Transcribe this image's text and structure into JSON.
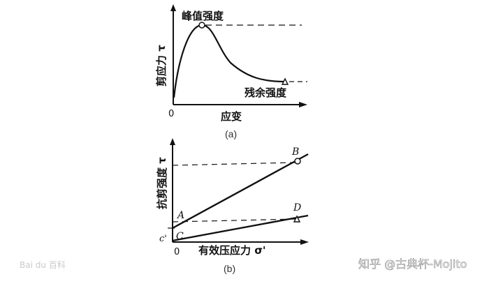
{
  "panel_a": {
    "ylabel": "剪应力 τ",
    "xlabel": "应变",
    "origin": "0",
    "peak_label": "峰值强度",
    "residual_label": "残余强度",
    "caption": "(a)"
  },
  "panel_b": {
    "ylabel": "抗剪强度 τ",
    "xlabel": "有效压应力 σ'",
    "origin": "0",
    "point_a": "A",
    "point_b": "B",
    "point_c": "C",
    "point_d": "D",
    "c_prime": "c'",
    "caption": "(b)"
  },
  "watermark_left": "Bai du 百科",
  "watermark_right": "知乎 @古典杯-Mojito"
}
